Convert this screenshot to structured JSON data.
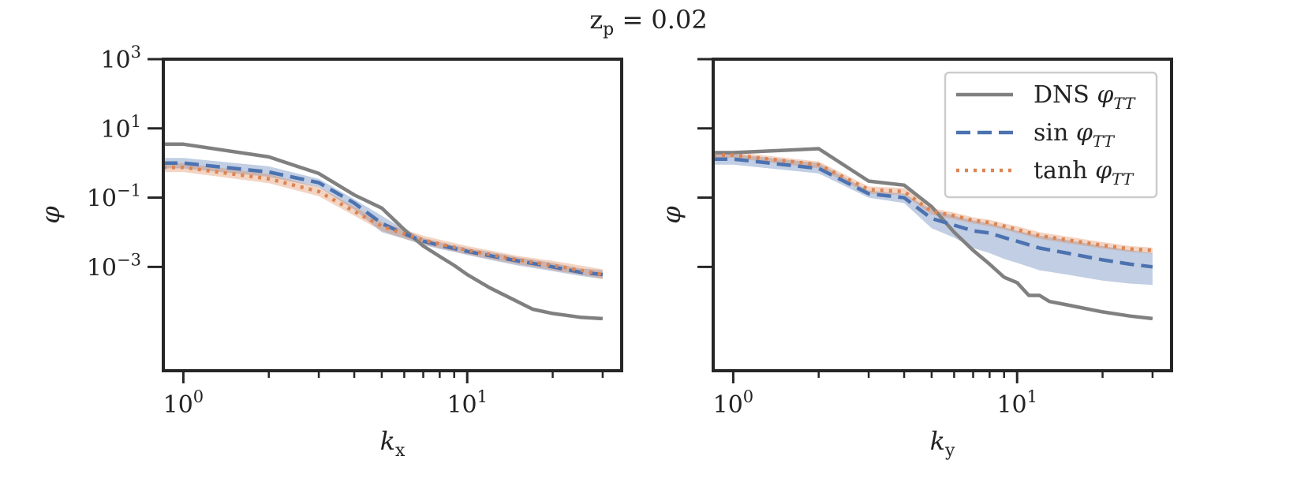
{
  "figure": {
    "title_base": "z",
    "title_sub": "p",
    "title_rest": " = 0.02"
  },
  "chart_data": [
    {
      "type": "line",
      "name": "left",
      "xscale": "log",
      "yscale": "log",
      "xlim": [
        0.85,
        35
      ],
      "ylim": [
        1e-06,
        1000
      ],
      "xlabel_base": "k",
      "xlabel_sub": "x",
      "ylabel": "φ",
      "x_ticks": [
        {
          "value": 1,
          "base": "10",
          "exp": "0"
        },
        {
          "value": 10,
          "base": "10",
          "exp": "1"
        }
      ],
      "x_minor_ticks": [
        2,
        3,
        4,
        5,
        6,
        7,
        8,
        9,
        20,
        30
      ],
      "y_ticks": [
        {
          "value": 1000,
          "base": "10",
          "exp": "3"
        },
        {
          "value": 10,
          "base": "10",
          "exp": "1"
        },
        {
          "value": 0.1,
          "base": "10",
          "exp": "−1"
        },
        {
          "value": 0.001,
          "base": "10",
          "exp": "−3"
        }
      ],
      "show_y_tick_labels": true,
      "series": [
        {
          "name": "DNS",
          "style": "solid",
          "color": "#808080",
          "x": [
            0.85,
            1,
            2,
            3,
            4,
            5,
            6,
            7,
            8,
            9,
            10,
            12,
            15,
            17,
            20,
            25,
            30
          ],
          "y": [
            3.5,
            3.5,
            1.5,
            0.5,
            0.12,
            0.05,
            0.012,
            0.004,
            0.002,
            0.0011,
            0.0006,
            0.00025,
            0.0001,
            6e-05,
            4.5e-05,
            3.5e-05,
            3.2e-05
          ]
        },
        {
          "name": "sin",
          "style": "dashed",
          "color": "#4c72b0",
          "x": [
            0.85,
            1,
            2,
            3,
            4,
            5,
            6,
            7,
            8,
            9,
            10,
            12,
            15,
            20,
            25,
            30
          ],
          "y": [
            1.0,
            1.0,
            0.55,
            0.27,
            0.07,
            0.018,
            0.009,
            0.0055,
            0.0042,
            0.0034,
            0.0028,
            0.0021,
            0.0015,
            0.001,
            0.0007,
            0.0006
          ],
          "band_lower": [
            0.7,
            0.7,
            0.4,
            0.2,
            0.045,
            0.01,
            0.0065,
            0.0043,
            0.0033,
            0.0027,
            0.0022,
            0.0016,
            0.0011,
            0.00075,
            0.00055,
            0.00045
          ],
          "band_upper": [
            1.4,
            1.4,
            0.8,
            0.35,
            0.09,
            0.03,
            0.012,
            0.0068,
            0.0052,
            0.0042,
            0.0035,
            0.0027,
            0.0019,
            0.0013,
            0.0009,
            0.0008
          ]
        },
        {
          "name": "tanh",
          "style": "dotted",
          "color": "#dd8452",
          "x": [
            0.85,
            1,
            2,
            3,
            4,
            5,
            6,
            7,
            8,
            9,
            10,
            12,
            15,
            20,
            25,
            30
          ],
          "y": [
            0.75,
            0.75,
            0.35,
            0.15,
            0.04,
            0.015,
            0.009,
            0.006,
            0.0046,
            0.0037,
            0.003,
            0.0023,
            0.0016,
            0.0011,
            0.0008,
            0.0006
          ],
          "band_lower": [
            0.55,
            0.55,
            0.26,
            0.11,
            0.03,
            0.011,
            0.0066,
            0.0045,
            0.0035,
            0.0028,
            0.0023,
            0.0017,
            0.0012,
            0.0008,
            0.0006,
            0.00045
          ],
          "band_upper": [
            1.0,
            1.0,
            0.48,
            0.2,
            0.055,
            0.02,
            0.012,
            0.008,
            0.0061,
            0.0049,
            0.004,
            0.003,
            0.0021,
            0.0015,
            0.0011,
            0.00085
          ]
        }
      ]
    },
    {
      "type": "line",
      "name": "right",
      "xscale": "log",
      "yscale": "log",
      "xlim": [
        0.85,
        35
      ],
      "ylim": [
        1e-06,
        1000
      ],
      "xlabel_base": "k",
      "xlabel_sub": "y",
      "ylabel": "φ",
      "x_ticks": [
        {
          "value": 1,
          "base": "10",
          "exp": "0"
        },
        {
          "value": 10,
          "base": "10",
          "exp": "1"
        }
      ],
      "x_minor_ticks": [
        2,
        3,
        4,
        5,
        6,
        7,
        8,
        9,
        20,
        30
      ],
      "y_ticks": [
        {
          "value": 1000,
          "base": "10",
          "exp": "3"
        },
        {
          "value": 10,
          "base": "10",
          "exp": "1"
        },
        {
          "value": 0.1,
          "base": "10",
          "exp": "−1"
        },
        {
          "value": 0.001,
          "base": "10",
          "exp": "−3"
        }
      ],
      "show_y_tick_labels": false,
      "legend": {
        "position": "top-right",
        "entries": [
          {
            "label": "DNS",
            "sym": "φ",
            "sub": "TT",
            "color": "#808080",
            "style": "solid"
          },
          {
            "label": "sin",
            "sym": "φ",
            "sub": "TT",
            "color": "#4c72b0",
            "style": "dashed"
          },
          {
            "label": "tanh",
            "sym": "φ",
            "sub": "TT",
            "color": "#dd8452",
            "style": "dotted"
          }
        ]
      },
      "series": [
        {
          "name": "DNS",
          "style": "solid",
          "color": "#808080",
          "x": [
            0.85,
            1,
            2,
            3,
            4,
            5,
            6,
            7,
            8,
            9,
            10,
            11,
            12,
            13,
            15,
            20,
            25,
            30
          ],
          "y": [
            2.0,
            2.0,
            2.6,
            0.3,
            0.23,
            0.055,
            0.01,
            0.003,
            0.0012,
            0.0005,
            0.00035,
            0.00015,
            0.00015,
            0.0001,
            8e-05,
            5e-05,
            3.8e-05,
            3.2e-05
          ]
        },
        {
          "name": "sin",
          "style": "dashed",
          "color": "#4c72b0",
          "x": [
            0.85,
            1,
            2,
            3,
            4,
            5,
            6,
            7,
            8,
            9,
            10,
            12,
            15,
            20,
            25,
            30
          ],
          "y": [
            1.3,
            1.3,
            0.7,
            0.13,
            0.1,
            0.025,
            0.016,
            0.011,
            0.0095,
            0.007,
            0.0055,
            0.0035,
            0.0025,
            0.0016,
            0.0012,
            0.001
          ],
          "band_lower": [
            0.9,
            0.9,
            0.5,
            0.1,
            0.07,
            0.013,
            0.007,
            0.0035,
            0.0025,
            0.0017,
            0.0013,
            0.0008,
            0.0006,
            0.0004,
            0.00033,
            0.0003
          ],
          "band_upper": [
            1.8,
            1.8,
            1.0,
            0.16,
            0.13,
            0.045,
            0.03,
            0.022,
            0.018,
            0.014,
            0.011,
            0.008,
            0.006,
            0.004,
            0.003,
            0.0025
          ]
        },
        {
          "name": "tanh",
          "style": "dotted",
          "color": "#dd8452",
          "x": [
            0.85,
            1,
            2,
            3,
            4,
            5,
            6,
            7,
            8,
            9,
            10,
            12,
            15,
            20,
            25,
            30
          ],
          "y": [
            1.7,
            1.7,
            0.9,
            0.17,
            0.15,
            0.04,
            0.03,
            0.022,
            0.019,
            0.015,
            0.012,
            0.008,
            0.006,
            0.0042,
            0.0033,
            0.003
          ],
          "band_lower": [
            1.4,
            1.4,
            0.7,
            0.13,
            0.12,
            0.032,
            0.024,
            0.018,
            0.015,
            0.012,
            0.0095,
            0.0065,
            0.0048,
            0.0034,
            0.0027,
            0.0024
          ],
          "band_upper": [
            2.1,
            2.1,
            1.1,
            0.21,
            0.19,
            0.05,
            0.037,
            0.027,
            0.023,
            0.018,
            0.015,
            0.01,
            0.0075,
            0.0052,
            0.004,
            0.0036
          ]
        }
      ]
    }
  ]
}
